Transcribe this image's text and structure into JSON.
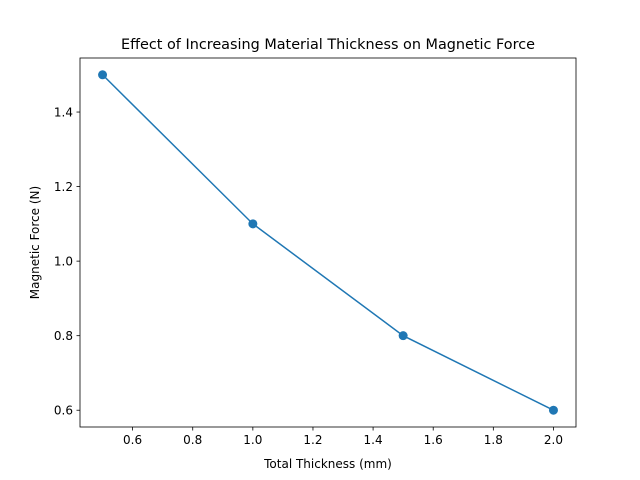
{
  "chart_data": {
    "type": "line",
    "title": "Effect of Increasing Material Thickness on Magnetic Force",
    "x_label": "Total Thickness (mm)",
    "y_label": "Magnetic Force (N)",
    "x": [
      0.5,
      1.0,
      1.5,
      2.0
    ],
    "series": [
      {
        "name": "Magnetic Force",
        "color": "#1f77b4",
        "values": [
          1.5,
          1.1,
          0.8,
          0.6
        ]
      }
    ],
    "xlim": [
      0.425,
      2.075
    ],
    "ylim": [
      0.555,
      1.545
    ],
    "xticks": [
      0.6,
      0.8,
      {
        "value": 1.0,
        "label": "1.0"
      },
      1.2,
      1.4,
      1.6,
      1.8,
      {
        "value": 2.0,
        "label": "2.0"
      }
    ],
    "yticks": [
      0.6,
      0.8,
      {
        "value": 1.0,
        "label": "1.0"
      },
      1.2,
      1.4
    ],
    "grid": false
  }
}
